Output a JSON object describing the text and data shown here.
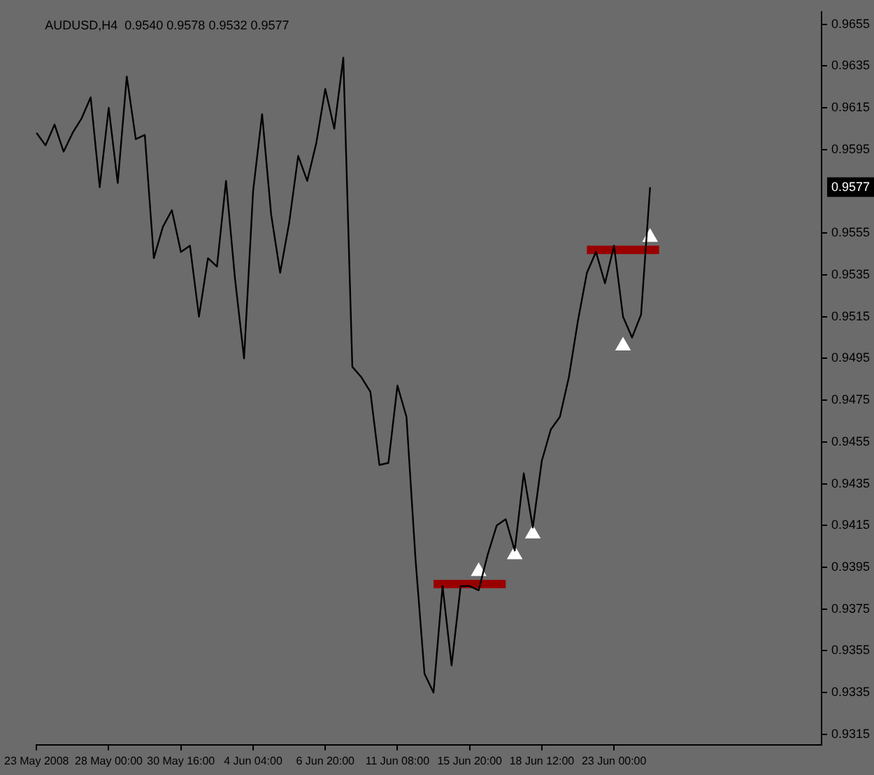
{
  "chart_data": {
    "type": "line",
    "title": "AUDUSD,H4  0.9540 0.9578 0.9532 0.9577",
    "categories": [
      "23 May 2008",
      null,
      null,
      null,
      null,
      null,
      null,
      null,
      "28 May 00:00",
      null,
      null,
      null,
      null,
      null,
      null,
      null,
      "30 May 16:00",
      null,
      null,
      null,
      null,
      null,
      null,
      null,
      "4 Jun 04:00",
      null,
      null,
      null,
      null,
      null,
      null,
      null,
      "6 Jun 20:00",
      null,
      null,
      null,
      null,
      null,
      null,
      null,
      "11 Jun 08:00",
      null,
      null,
      null,
      null,
      null,
      null,
      null,
      "15 Jun 20:00",
      null,
      null,
      null,
      null,
      null,
      null,
      null,
      "18 Jun 12:00",
      null,
      null,
      null,
      null,
      null,
      null,
      null,
      "23 Jun 00:00",
      null,
      null,
      null,
      null,
      null,
      null,
      null,
      null,
      null,
      null,
      null,
      null,
      null,
      null,
      null,
      null,
      null,
      null,
      null,
      null,
      null,
      null,
      null
    ],
    "series": [
      {
        "type": "line",
        "color": "#000000",
        "marker": "none",
        "values": [
          0.9603,
          0.9597,
          0.9607,
          0.9594,
          0.9603,
          0.961,
          0.962,
          0.9577,
          0.9615,
          0.9579,
          0.963,
          0.96,
          0.9602,
          0.9543,
          0.9558,
          0.9566,
          0.9546,
          0.9549,
          0.9515,
          0.9543,
          0.9539,
          0.958,
          0.9533,
          0.9495,
          0.9575,
          0.9612,
          0.9564,
          0.9536,
          0.956,
          0.9592,
          0.958,
          0.9598,
          0.9624,
          0.9605,
          0.9639,
          0.9491,
          0.9486,
          0.9479,
          0.9444,
          0.9445,
          0.9482,
          0.9467,
          0.9399,
          0.9344,
          0.9335,
          0.9386,
          0.9348,
          0.9386,
          0.9386,
          0.9384,
          0.9401,
          0.9415,
          0.9418,
          0.9403,
          0.944,
          0.9414,
          0.9446,
          0.9461,
          0.9467,
          0.9486,
          0.9513,
          0.9536,
          0.9546,
          0.9531,
          0.9549,
          0.9515,
          0.9505,
          0.9516,
          0.9577,
          null,
          null,
          null,
          null,
          null,
          null,
          null,
          null,
          null,
          null,
          null,
          null,
          null,
          null,
          null,
          null,
          null,
          null,
          null
        ]
      },
      {
        "type": "line",
        "color": "#990000",
        "marker": "none",
        "values": [
          null,
          null,
          null,
          null,
          null,
          null,
          null,
          null,
          null,
          null,
          null,
          null,
          null,
          null,
          null,
          null,
          null,
          null,
          null,
          null,
          null,
          null,
          null,
          null,
          null,
          null,
          null,
          null,
          null,
          null,
          null,
          null,
          null,
          null,
          null,
          null,
          null,
          null,
          null,
          null,
          null,
          null,
          null,
          null,
          0.9387,
          0.9387,
          0.9387,
          0.9387,
          0.9387,
          0.9387,
          0.9387,
          0.9387,
          0.9387,
          null,
          null,
          null,
          null,
          null,
          null,
          null,
          null,
          null,
          null,
          null,
          null,
          null,
          null,
          null,
          null,
          null,
          null,
          null,
          null,
          null,
          null,
          null,
          null,
          null,
          null,
          null,
          null,
          null,
          null,
          null,
          null,
          null,
          null,
          null
        ]
      },
      {
        "type": "line",
        "color": "#990000",
        "marker": "none",
        "values": [
          null,
          null,
          null,
          null,
          null,
          null,
          null,
          null,
          null,
          null,
          null,
          null,
          null,
          null,
          null,
          null,
          null,
          null,
          null,
          null,
          null,
          null,
          null,
          null,
          null,
          null,
          null,
          null,
          null,
          null,
          null,
          null,
          null,
          null,
          null,
          null,
          null,
          null,
          null,
          null,
          null,
          null,
          null,
          null,
          null,
          null,
          null,
          null,
          null,
          null,
          null,
          null,
          null,
          null,
          null,
          null,
          null,
          null,
          null,
          null,
          null,
          0.9547,
          0.9547,
          0.9547,
          0.9547,
          0.9547,
          0.9547,
          0.9547,
          0.9547,
          0.9547,
          null,
          null,
          null,
          null,
          null,
          null,
          null,
          null,
          null,
          null,
          null,
          null,
          null,
          null,
          null,
          null,
          null,
          null
        ]
      },
      {
        "type": "scatter",
        "color": "#ffffff",
        "marker": "triangle",
        "values": [
          null,
          null,
          null,
          null,
          null,
          null,
          null,
          null,
          null,
          null,
          null,
          null,
          null,
          null,
          null,
          null,
          null,
          null,
          null,
          null,
          null,
          null,
          null,
          null,
          null,
          null,
          null,
          null,
          null,
          null,
          null,
          null,
          null,
          null,
          null,
          null,
          null,
          null,
          null,
          null,
          null,
          null,
          null,
          null,
          null,
          null,
          null,
          null,
          null,
          0.9393,
          null,
          null,
          null,
          0.9401,
          null,
          0.9411,
          null,
          null,
          null,
          null,
          null,
          null,
          null,
          null,
          null,
          0.9501,
          null,
          null,
          0.9553,
          null,
          null,
          null,
          null,
          null,
          null,
          null,
          null,
          null,
          null,
          null,
          null,
          null,
          null,
          null,
          null,
          null,
          null,
          null
        ]
      }
    ],
    "ylim": [
      0.931,
      0.9661
    ],
    "yticks": [
      0.9655,
      0.9635,
      0.9615,
      0.9595,
      0.9555,
      0.9535,
      0.9515,
      0.9495,
      0.9475,
      0.9455,
      0.9435,
      0.9415,
      0.9395,
      0.9375,
      0.9355,
      0.9335,
      0.9315
    ],
    "annotations": [
      "0.9577"
    ]
  }
}
